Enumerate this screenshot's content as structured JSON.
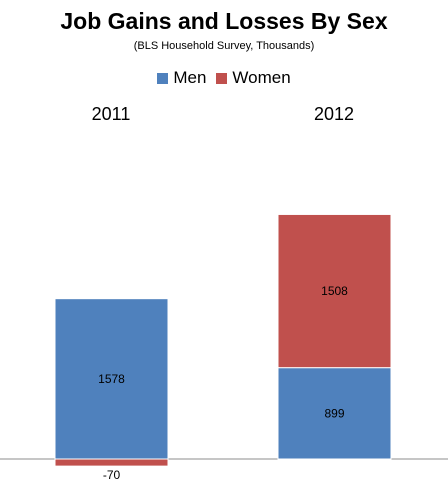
{
  "chart_data": {
    "type": "bar",
    "stacked": true,
    "title": "Job Gains and Losses By Sex",
    "subtitle": "(BLS Household Survey, Thousands)",
    "categories": [
      "2011",
      "2012"
    ],
    "series": [
      {
        "name": "Men",
        "values": [
          1578,
          899
        ],
        "color": "#4f81bd"
      },
      {
        "name": "Women",
        "values": [
          -70,
          1508
        ],
        "color": "#c0504d"
      }
    ],
    "legend_position": "top",
    "category_labels_position": "top",
    "grid": false
  }
}
